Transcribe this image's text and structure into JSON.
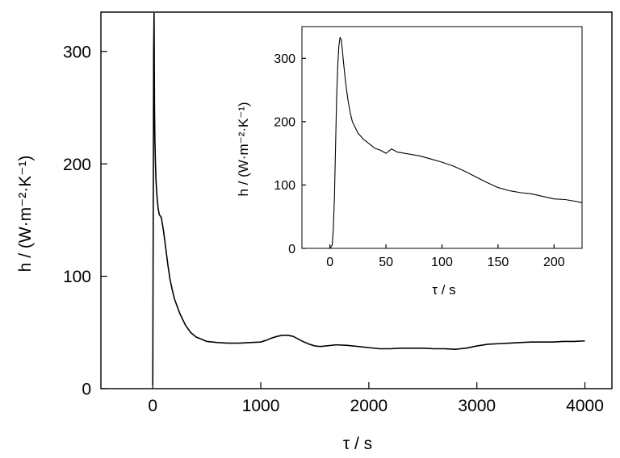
{
  "chart_data": [
    {
      "type": "line",
      "xlabel": "τ  / s",
      "ylabel": "h / (W·m⁻²·K⁻¹)",
      "xlim": [
        -480,
        4250
      ],
      "ylim": [
        0,
        335
      ],
      "xticks": [
        0,
        1000,
        2000,
        3000,
        4000
      ],
      "yticks": [
        0,
        100,
        200,
        300
      ],
      "grid": false,
      "series": [
        {
          "x": [
            0,
            5,
            8,
            12,
            16,
            20,
            25,
            30,
            40,
            50,
            60,
            80,
            100,
            120,
            140,
            160,
            180,
            200,
            250,
            300,
            350,
            400,
            450,
            500,
            600,
            700,
            800,
            900,
            1000,
            1050,
            1100,
            1150,
            1200,
            1250,
            1300,
            1350,
            1400,
            1450,
            1500,
            1550,
            1600,
            1700,
            1800,
            1900,
            2000,
            2100,
            2200,
            2300,
            2400,
            2500,
            2600,
            2700,
            2800,
            2850,
            2900,
            3000,
            3100,
            3200,
            3300,
            3400,
            3500,
            3600,
            3700,
            3800,
            3900,
            4000
          ],
          "y": [
            3,
            180,
            300,
            334,
            250,
            220,
            200,
            185,
            170,
            160,
            155,
            152,
            140,
            125,
            110,
            97,
            88,
            80,
            67,
            57,
            50,
            46,
            44,
            42,
            41,
            40.5,
            40.5,
            41,
            41.5,
            43,
            45,
            46.5,
            47.5,
            47.5,
            46.5,
            44,
            41.5,
            39.5,
            38,
            37.5,
            38,
            39,
            38.5,
            37.5,
            36.5,
            35.5,
            35.5,
            36,
            36,
            36,
            35.5,
            35.5,
            35,
            35.5,
            36,
            38,
            39.5,
            40,
            40.5,
            41,
            41.5,
            41.5,
            41.5,
            42,
            42,
            42.5
          ]
        }
      ]
    },
    {
      "type": "line",
      "xlabel": "τ  / s",
      "ylabel": "h / (W·m⁻²·K⁻¹)",
      "xlim": [
        -25,
        225
      ],
      "ylim": [
        0,
        350
      ],
      "xticks": [
        0,
        50,
        100,
        150,
        200
      ],
      "yticks": [
        0,
        100,
        200,
        300
      ],
      "grid": false,
      "series": [
        {
          "x": [
            0,
            2,
            3,
            4,
            5,
            6,
            7,
            8,
            9,
            10,
            11,
            12,
            14,
            16,
            18,
            20,
            25,
            30,
            35,
            40,
            45,
            50,
            55,
            60,
            70,
            80,
            90,
            100,
            110,
            120,
            130,
            140,
            150,
            160,
            170,
            180,
            190,
            200,
            210,
            220,
            225
          ],
          "y": [
            0,
            5,
            30,
            80,
            160,
            240,
            290,
            320,
            333,
            330,
            315,
            295,
            262,
            235,
            215,
            200,
            182,
            172,
            165,
            158,
            155,
            150,
            157,
            152,
            149,
            146,
            141,
            136,
            130,
            122,
            113,
            104,
            96,
            91,
            88,
            86,
            82,
            78,
            77,
            74,
            72
          ]
        }
      ]
    }
  ]
}
